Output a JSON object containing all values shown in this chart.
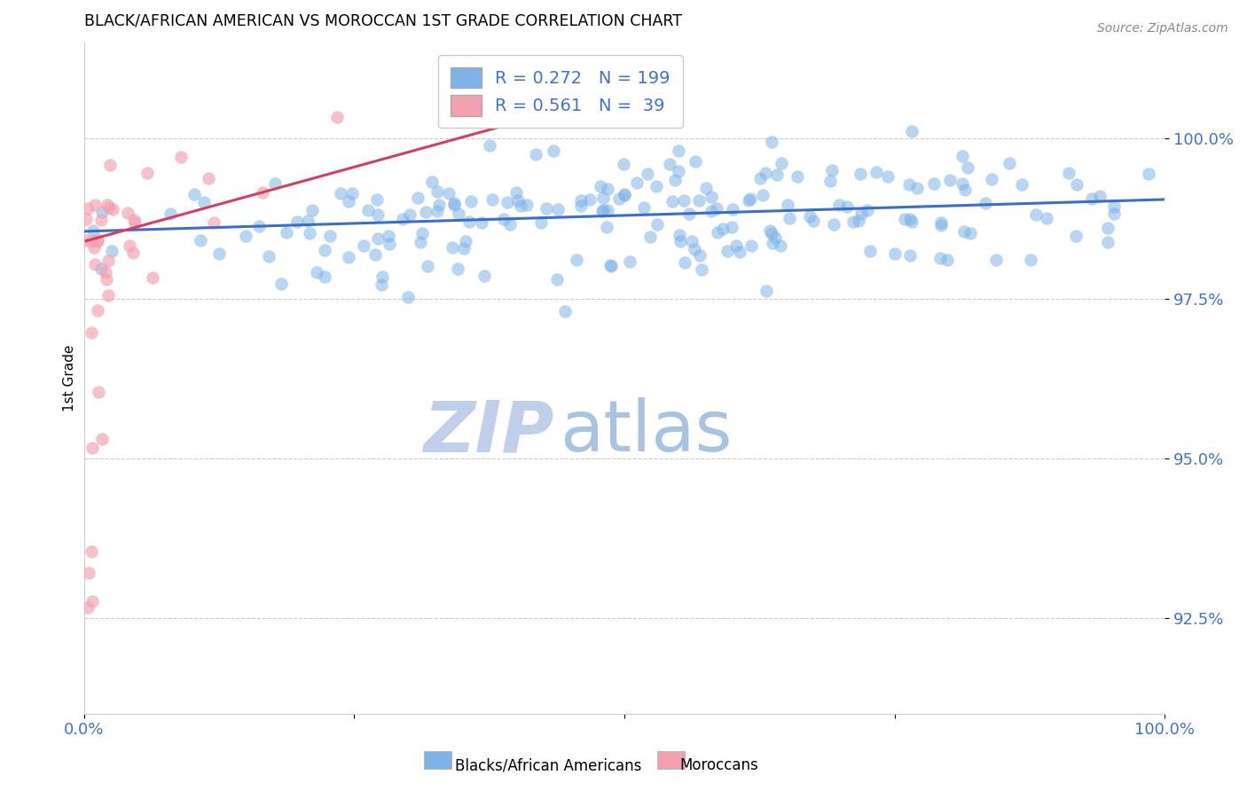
{
  "title": "BLACK/AFRICAN AMERICAN VS MOROCCAN 1ST GRADE CORRELATION CHART",
  "source": "Source: ZipAtlas.com",
  "ylabel": "1st Grade",
  "y_tick_labels": [
    "92.5%",
    "95.0%",
    "97.5%",
    "100.0%"
  ],
  "y_tick_values": [
    92.5,
    95.0,
    97.5,
    100.0
  ],
  "x_range": [
    0.0,
    100.0
  ],
  "y_range": [
    91.0,
    101.5
  ],
  "legend_blue_R": "0.272",
  "legend_blue_N": "199",
  "legend_pink_R": "0.561",
  "legend_pink_N": " 39",
  "blue_color": "#7EB3E8",
  "pink_color": "#F4A0B0",
  "blue_line_color": "#3A6FC4",
  "pink_line_color": "#D04060",
  "tick_label_color": "#4472C4",
  "watermark_zip": "ZIP",
  "watermark_atlas": "atlas",
  "watermark_color_zip": "#C0CFEA",
  "watermark_color_atlas": "#A8C4E0",
  "background_color": "#FFFFFF",
  "blue_line_x": [
    0.0,
    100.0
  ],
  "blue_line_y": [
    98.55,
    99.05
  ],
  "pink_line_x": [
    0.2,
    42.0
  ],
  "pink_line_y": [
    98.4,
    100.35
  ]
}
